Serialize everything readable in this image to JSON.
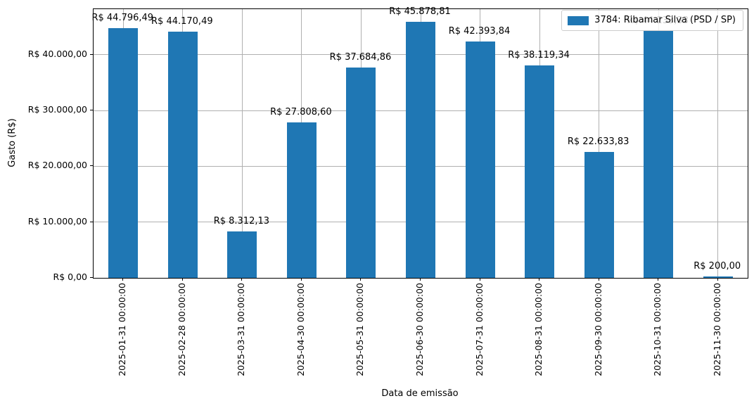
{
  "chart_data": {
    "type": "bar",
    "title": "",
    "xlabel": "Data de emissão",
    "ylabel": "Gasto (R$)",
    "legend": {
      "position": "upper-right",
      "series_label": "3784: Ribamar Silva (PSD / SP)"
    },
    "bar_color": "#1f77b4",
    "grid": true,
    "grid_color": "#b0b0b0",
    "axis_color": "#000000",
    "ylim": [
      0,
      48173
    ],
    "yticks": [
      {
        "value": 0,
        "label": "R$ 0,00"
      },
      {
        "value": 10000,
        "label": "R$ 10.000,00"
      },
      {
        "value": 20000,
        "label": "R$ 20.000,00"
      },
      {
        "value": 30000,
        "label": "R$ 30.000,00"
      },
      {
        "value": 40000,
        "label": "R$ 40.000,00"
      }
    ],
    "bars": [
      {
        "category": "2025-01-31 00:00:00",
        "value": 44796.49,
        "label": "R$ 44.796,49",
        "label_hidden": false
      },
      {
        "category": "2025-02-28 00:00:00",
        "value": 44170.49,
        "label": "R$ 44.170,49",
        "label_hidden": false
      },
      {
        "category": "2025-03-31 00:00:00",
        "value": 8312.13,
        "label": "R$ 8.312,13",
        "label_hidden": false
      },
      {
        "category": "2025-04-30 00:00:00",
        "value": 27808.6,
        "label": "R$ 27.808,60",
        "label_hidden": false
      },
      {
        "category": "2025-05-31 00:00:00",
        "value": 37684.86,
        "label": "R$ 37.684,86",
        "label_hidden": false
      },
      {
        "category": "2025-06-30 00:00:00",
        "value": 45878.81,
        "label": "R$ 45.878,81",
        "label_hidden": false
      },
      {
        "category": "2025-07-31 00:00:00",
        "value": 42393.84,
        "label": "R$ 42.393,84",
        "label_hidden": false
      },
      {
        "category": "2025-08-31 00:00:00",
        "value": 38119.34,
        "label": "R$ 38.119,34",
        "label_hidden": false
      },
      {
        "category": "2025-09-30 00:00:00",
        "value": 22633.83,
        "label": "R$ 22.633,83",
        "label_hidden": false
      },
      {
        "category": "2025-10-31 00:00:00",
        "value": 44233.33,
        "label": "R$ 44.233,33",
        "label_hidden": true
      },
      {
        "category": "2025-11-30 00:00:00",
        "value": 200.0,
        "label": "R$ 200,00",
        "label_hidden": false
      }
    ]
  }
}
